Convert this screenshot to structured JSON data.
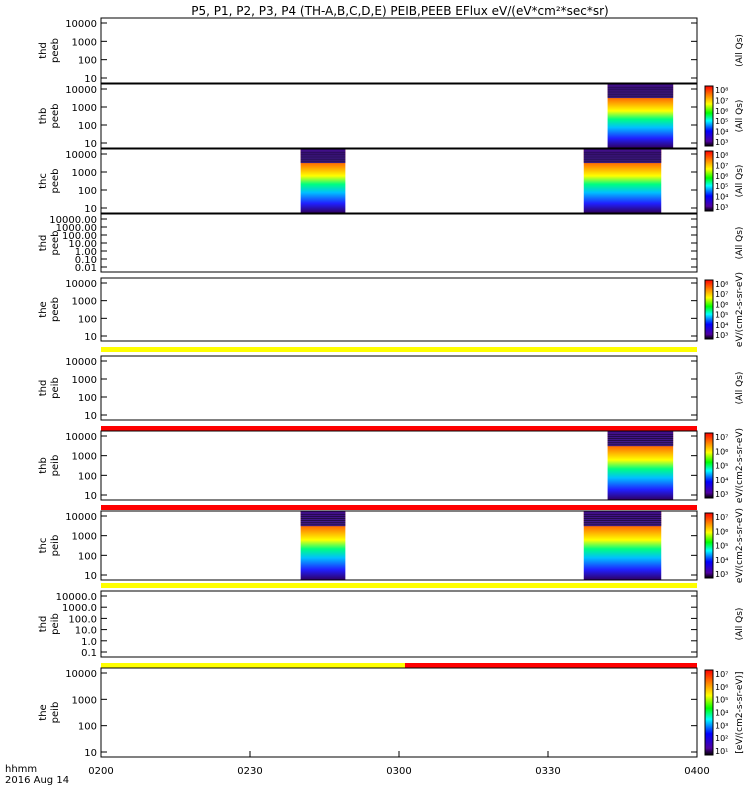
{
  "title": "P5, P1, P2, P3, P4 (TH-A,B,C,D,E) PEIB,PEEB EFlux eV/(eV*cm²*sec*sr)",
  "xaxis": {
    "ticks": [
      "0200",
      "0230",
      "0300",
      "0330",
      "0400"
    ],
    "label": "hhmm",
    "date": "2016 Aug 14"
  },
  "colors": {
    "flag_yellow": "#ffff00",
    "flag_red": "#ff0000",
    "background": "#ffffff"
  },
  "chart_data": {
    "type": "heatmap",
    "time_range": [
      "02:00",
      "04:00"
    ],
    "panels": [
      {
        "ylabel": [
          "thd",
          "peeb"
        ],
        "yticks": [
          "10000",
          "1000",
          "100",
          "10"
        ],
        "colorbar": null,
        "sidelabel": "(All Qs)",
        "blocks": []
      },
      {
        "ylabel": [
          "thb",
          "peeb"
        ],
        "yticks": [
          "10000",
          "1000",
          "100",
          "10"
        ],
        "colorbar": {
          "labels": [
            "10⁸",
            "10⁷",
            "10⁶",
            "10⁵",
            "10⁴",
            "10³"
          ]
        },
        "sidelabel": "(All Qs)",
        "blocks": [
          {
            "t0": 3.7,
            "t1": 3.92
          }
        ]
      },
      {
        "ylabel": [
          "thc",
          "peeb"
        ],
        "yticks": [
          "10000",
          "1000",
          "100",
          "10"
        ],
        "colorbar": {
          "labels": [
            "10⁸",
            "10⁷",
            "10⁶",
            "10⁵",
            "10⁴",
            "10³"
          ]
        },
        "sidelabel": "(All Qs)",
        "blocks": [
          {
            "t0": 2.67,
            "t1": 2.82
          },
          {
            "t0": 3.62,
            "t1": 3.88
          }
        ]
      },
      {
        "ylabel": [
          "thd",
          "peeb"
        ],
        "yticks": [
          "10000.00",
          "1000.00",
          "100.00",
          "10.00",
          "1.00",
          "0.10",
          "0.01"
        ],
        "colorbar": null,
        "sidelabel": "(All Qs)",
        "blocks": []
      },
      {
        "ylabel": [
          "the",
          "peeb"
        ],
        "yticks": [
          "10000",
          "1000",
          "100",
          "10"
        ],
        "colorbar": {
          "labels": [
            "10⁸",
            "10⁷",
            "10⁶",
            "10⁵",
            "10⁴",
            "10³"
          ]
        },
        "sidelabel": "eV/(cm2-s-sr-eV)",
        "blocks": [],
        "flag": [
          {
            "t0": 2.0,
            "t1": 4.0,
            "color": "yellow"
          }
        ]
      },
      {
        "ylabel": [
          "thd",
          "peib"
        ],
        "yticks": [
          "10000",
          "1000",
          "100",
          "10"
        ],
        "colorbar": null,
        "sidelabel": "(All Qs)",
        "blocks": [],
        "flag": [
          {
            "t0": 2.0,
            "t1": 4.0,
            "color": "red"
          }
        ]
      },
      {
        "ylabel": [
          "thb",
          "peib"
        ],
        "yticks": [
          "10000",
          "1000",
          "100",
          "10"
        ],
        "colorbar": {
          "labels": [
            "10⁷",
            "10⁶",
            "10⁵",
            "10⁴",
            "10³"
          ]
        },
        "sidelabel": "eV/(cm2-s-sr-eV)",
        "blocks": [
          {
            "t0": 3.7,
            "t1": 3.92
          }
        ],
        "flag": [
          {
            "t0": 2.0,
            "t1": 4.0,
            "color": "red"
          }
        ]
      },
      {
        "ylabel": [
          "thc",
          "peib"
        ],
        "yticks": [
          "10000",
          "1000",
          "100",
          "10"
        ],
        "colorbar": {
          "labels": [
            "10⁷",
            "10⁶",
            "10⁵",
            "10⁴",
            "10³"
          ]
        },
        "sidelabel": "eV/(cm2-s-sr-eV)",
        "blocks": [
          {
            "t0": 2.67,
            "t1": 2.82
          },
          {
            "t0": 3.62,
            "t1": 3.88
          }
        ],
        "flag": [
          {
            "t0": 2.0,
            "t1": 4.0,
            "color": "yellow"
          }
        ]
      },
      {
        "ylabel": [
          "thd",
          "peib"
        ],
        "yticks": [
          "10000.0",
          "1000.0",
          "100.0",
          "10.0",
          "1.0",
          "0.1"
        ],
        "colorbar": null,
        "sidelabel": "(All Qs)",
        "blocks": [],
        "flag": [
          {
            "t0": 2.0,
            "t1": 3.02,
            "color": "yellow"
          },
          {
            "t0": 3.02,
            "t1": 4.0,
            "color": "red"
          }
        ]
      },
      {
        "ylabel": [
          "the",
          "peib"
        ],
        "yticks": [
          "10000",
          "1000",
          "100",
          "10"
        ],
        "colorbar": {
          "labels": [
            "10⁷",
            "10⁶",
            "10⁵",
            "10⁴",
            "10³",
            "10²",
            "10¹"
          ]
        },
        "sidelabel": "[eV/(cm2-s-sr-eV)]",
        "blocks": []
      }
    ]
  }
}
